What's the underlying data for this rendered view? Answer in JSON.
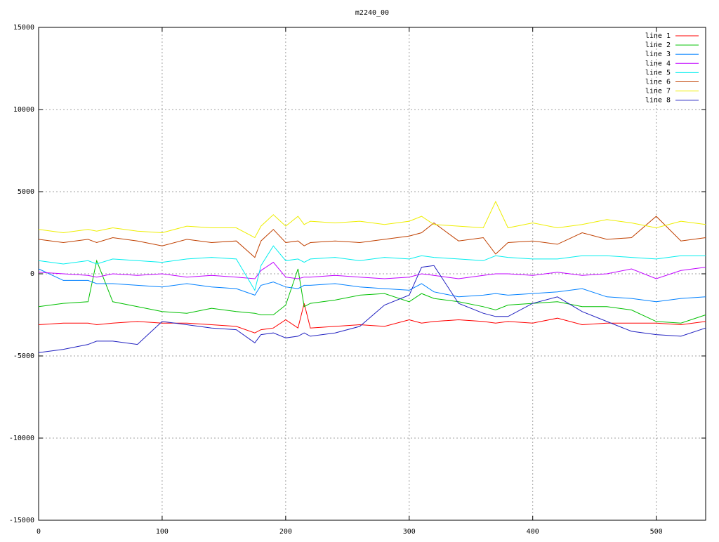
{
  "chart_data": {
    "type": "line",
    "title": "m2240_00",
    "x": [
      0,
      20,
      40,
      47,
      60,
      80,
      100,
      120,
      140,
      160,
      175,
      180,
      190,
      200,
      210,
      215,
      220,
      240,
      260,
      280,
      300,
      310,
      320,
      340,
      360,
      370,
      380,
      400,
      420,
      440,
      460,
      480,
      500,
      520,
      540
    ],
    "xlim": [
      0,
      540
    ],
    "xticks": [
      0,
      100,
      200,
      300,
      400,
      500
    ],
    "ylim": [
      -15000,
      15000
    ],
    "yticks": [
      -15000,
      -10000,
      -5000,
      0,
      5000,
      10000,
      15000
    ],
    "grid": true,
    "legend": "top-right",
    "series": [
      {
        "name": "line 1",
        "color": "#ff0000",
        "values": [
          -3100,
          -3000,
          -3000,
          -3100,
          -3000,
          -2900,
          -3000,
          -3000,
          -3100,
          -3200,
          -3600,
          -3400,
          -3300,
          -2800,
          -3300,
          -1800,
          -3300,
          -3200,
          -3100,
          -3200,
          -2800,
          -3000,
          -2900,
          -2800,
          -2900,
          -3000,
          -2900,
          -3000,
          -2700,
          -3100,
          -3000,
          -3000,
          -3000,
          -3100,
          -2900
        ]
      },
      {
        "name": "line 2",
        "color": "#00c000",
        "values": [
          -2000,
          -1800,
          -1700,
          800,
          -1700,
          -2000,
          -2300,
          -2400,
          -2100,
          -2300,
          -2400,
          -2500,
          -2500,
          -1900,
          300,
          -2000,
          -1800,
          -1600,
          -1300,
          -1200,
          -1700,
          -1200,
          -1500,
          -1700,
          -2000,
          -2200,
          -1900,
          -1800,
          -1700,
          -2000,
          -2000,
          -2200,
          -2900,
          -3000,
          -2500
        ]
      },
      {
        "name": "line 3",
        "color": "#0080ff",
        "values": [
          300,
          -400,
          -400,
          -600,
          -600,
          -700,
          -800,
          -600,
          -800,
          -900,
          -1300,
          -700,
          -500,
          -800,
          -900,
          -700,
          -700,
          -600,
          -800,
          -900,
          -1000,
          -600,
          -1100,
          -1400,
          -1300,
          -1200,
          -1300,
          -1200,
          -1100,
          -900,
          -1400,
          -1500,
          -1700,
          -1500,
          -1400
        ]
      },
      {
        "name": "line 4",
        "color": "#c000ff",
        "values": [
          100,
          0,
          -100,
          -200,
          0,
          -100,
          0,
          -200,
          -100,
          -200,
          -300,
          200,
          700,
          -200,
          -300,
          -200,
          -200,
          -100,
          -200,
          -300,
          -200,
          0,
          -100,
          -300,
          -100,
          0,
          0,
          -100,
          100,
          -100,
          0,
          300,
          -300,
          200,
          400
        ]
      },
      {
        "name": "line 5",
        "color": "#00eeee",
        "values": [
          800,
          600,
          800,
          600,
          900,
          800,
          700,
          900,
          1000,
          900,
          -1000,
          500,
          1700,
          800,
          900,
          700,
          900,
          1000,
          800,
          1000,
          900,
          1100,
          1000,
          900,
          800,
          1100,
          1000,
          900,
          900,
          1100,
          1100,
          1000,
          900,
          1100,
          1100
        ]
      },
      {
        "name": "line 6",
        "color": "#c04000",
        "values": [
          2100,
          1900,
          2100,
          1900,
          2200,
          2000,
          1700,
          2100,
          1900,
          2000,
          1000,
          2000,
          2700,
          1900,
          2000,
          1700,
          1900,
          2000,
          1900,
          2100,
          2300,
          2500,
          3100,
          2000,
          2200,
          1200,
          1900,
          2000,
          1800,
          2500,
          2100,
          2200,
          3500,
          2000,
          2200
        ]
      },
      {
        "name": "line 7",
        "color": "#eeee00",
        "values": [
          2700,
          2500,
          2700,
          2600,
          2800,
          2600,
          2500,
          2900,
          2800,
          2800,
          2200,
          2900,
          3600,
          2900,
          3500,
          3000,
          3200,
          3100,
          3200,
          3000,
          3200,
          3500,
          3000,
          2900,
          2800,
          4400,
          2800,
          3100,
          2800,
          3000,
          3300,
          3100,
          2800,
          3200,
          3000
        ]
      },
      {
        "name": "line 8",
        "color": "#2020c0",
        "values": [
          -4800,
          -4600,
          -4300,
          -4100,
          -4100,
          -4300,
          -2900,
          -3100,
          -3300,
          -3400,
          -4200,
          -3700,
          -3600,
          -3900,
          -3800,
          -3600,
          -3800,
          -3600,
          -3200,
          -1900,
          -1300,
          400,
          500,
          -1800,
          -2400,
          -2600,
          -2600,
          -1800,
          -1400,
          -2300,
          -2900,
          -3500,
          -3700,
          -3800,
          -3300
        ]
      }
    ]
  }
}
